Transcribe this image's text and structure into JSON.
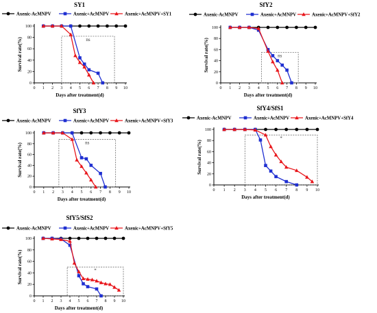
{
  "figure": {
    "legend_labels": [
      "Axenic-AcMNPV",
      "Axenic+AcMNPV",
      "Axenic+AcMNPV+SY1"
    ],
    "colors": {
      "axenic_minus": "#000000",
      "axenic_plus": "#1f2fd1",
      "axenic_plus_sfy": "#e8161b",
      "ns_box": "#555555"
    }
  },
  "chart_data": [
    {
      "type": "line",
      "title": "SY1",
      "xlabel": "Days after treatment(d)",
      "ylabel": "Survival rate(%)",
      "xlim": [
        0,
        10
      ],
      "ylim": [
        0,
        100
      ],
      "xticks": [
        0,
        1,
        2,
        3,
        4,
        5,
        6,
        7,
        8,
        9,
        10
      ],
      "yticks": [
        0,
        20,
        40,
        60,
        80,
        100
      ],
      "legend_position": "top",
      "series": [
        {
          "name": "Axenic-AcMNPV",
          "color": "#000000",
          "marker": "circle",
          "x": [
            1,
            2,
            3,
            4,
            5,
            6,
            7,
            8,
            9,
            10
          ],
          "y": [
            100,
            100,
            100,
            100,
            100,
            100,
            100,
            100,
            100,
            100
          ]
        },
        {
          "name": "Axenic+AcMNPV",
          "color": "#1f2fd1",
          "marker": "square",
          "x": [
            1,
            2,
            3,
            4,
            5,
            5.5,
            6,
            7,
            7.5
          ],
          "y": [
            100,
            100,
            100,
            100,
            44,
            33,
            23,
            17,
            0
          ]
        },
        {
          "name": "Axenic+AcMNPV+SY1",
          "color": "#e8161b",
          "marker": "triangle",
          "x": [
            1,
            2,
            3,
            4,
            4.5,
            5,
            5.5,
            6,
            6.5
          ],
          "y": [
            100,
            100,
            100,
            85,
            48,
            36,
            28,
            14,
            0
          ]
        }
      ],
      "annotation": {
        "text": "ns",
        "x_range": [
          3,
          8.8
        ],
        "y_range": [
          0,
          82
        ]
      }
    },
    {
      "type": "line",
      "title": "SfY2",
      "xlabel": "Days after treatment(d)",
      "ylabel": "Survival rate(%)",
      "xlim": [
        0,
        10
      ],
      "ylim": [
        0,
        100
      ],
      "xticks": [
        0,
        1,
        2,
        3,
        4,
        5,
        6,
        7,
        8,
        9,
        10
      ],
      "yticks": [
        0,
        20,
        40,
        60,
        80,
        100
      ],
      "legend_position": "top",
      "series": [
        {
          "name": "Axenic-AcMNPV",
          "color": "#000000",
          "marker": "circle",
          "x": [
            1,
            2,
            3,
            4,
            5,
            6,
            7,
            8,
            9,
            10
          ],
          "y": [
            100,
            100,
            100,
            100,
            100,
            100,
            100,
            100,
            100,
            100
          ]
        },
        {
          "name": "Axenic+AcMNPV",
          "color": "#1f2fd1",
          "marker": "square",
          "x": [
            1,
            2,
            3,
            4,
            5,
            5.5,
            6,
            6.5,
            7,
            7.5
          ],
          "y": [
            100,
            100,
            100,
            95,
            60,
            49,
            40,
            32,
            23,
            0
          ]
        },
        {
          "name": "Axenic+AcMNPV+SfY2",
          "color": "#e8161b",
          "marker": "triangle",
          "x": [
            1,
            2,
            3,
            4,
            5,
            5.5,
            6,
            6.5
          ],
          "y": [
            100,
            100,
            100,
            98,
            57,
            38,
            23,
            0
          ]
        }
      ],
      "annotation": {
        "text": "ns",
        "x_range": [
          4.3,
          8.2
        ],
        "y_range": [
          0,
          55
        ]
      }
    },
    {
      "type": "line",
      "title": "SfY3",
      "xlabel": "Days after treatment(d)",
      "ylabel": "Survival rate(%)",
      "xlim": [
        0,
        10
      ],
      "ylim": [
        0,
        100
      ],
      "xticks": [
        0,
        1,
        2,
        3,
        4,
        5,
        6,
        7,
        8,
        9,
        10
      ],
      "yticks": [
        0,
        20,
        40,
        60,
        80,
        100
      ],
      "legend_position": "top",
      "series": [
        {
          "name": "Axenic-AcMNPV",
          "color": "#000000",
          "marker": "circle",
          "x": [
            1,
            2,
            3,
            4,
            5,
            6,
            7,
            8,
            9,
            10
          ],
          "y": [
            100,
            100,
            100,
            100,
            100,
            100,
            100,
            100,
            100,
            100
          ]
        },
        {
          "name": "Axenic+AcMNPV",
          "color": "#1f2fd1",
          "marker": "square",
          "x": [
            1,
            2,
            3,
            4,
            5,
            5.5,
            6,
            7,
            7.5
          ],
          "y": [
            100,
            100,
            100,
            100,
            54,
            52,
            40,
            25,
            0
          ]
        },
        {
          "name": "Axenic+AcMNPV+SfY3",
          "color": "#e8161b",
          "marker": "triangle",
          "x": [
            1,
            2,
            3,
            4,
            4.5,
            5,
            5.5,
            6,
            6.5
          ],
          "y": [
            100,
            100,
            100,
            88,
            50,
            38,
            26,
            13,
            0
          ]
        }
      ],
      "annotation": {
        "text": "ns",
        "x_range": [
          2.6,
          8.6
        ],
        "y_range": [
          0,
          88
        ]
      }
    },
    {
      "type": "line",
      "title": "SfY4/SfS1",
      "xlabel": "Days after treatment(d)",
      "ylabel": "Survival rate(%)",
      "xlim": [
        0,
        10
      ],
      "ylim": [
        0,
        100
      ],
      "xticks": [
        0,
        1,
        2,
        3,
        4,
        5,
        6,
        7,
        8,
        9,
        10
      ],
      "yticks": [
        0,
        20,
        40,
        60,
        80,
        100
      ],
      "legend_position": "top",
      "series": [
        {
          "name": "Axenic-AcMNPV",
          "color": "#000000",
          "marker": "circle",
          "x": [
            1,
            2,
            3,
            4,
            5,
            6,
            7,
            8,
            9,
            10
          ],
          "y": [
            100,
            100,
            100,
            100,
            100,
            100,
            100,
            100,
            100,
            100
          ]
        },
        {
          "name": "Axenic+AcMNPV",
          "color": "#1f2fd1",
          "marker": "square",
          "x": [
            1,
            2,
            3,
            4,
            4.5,
            5,
            5.5,
            6,
            7,
            8
          ],
          "y": [
            100,
            100,
            100,
            100,
            81,
            35,
            25,
            15,
            6,
            0
          ]
        },
        {
          "name": "Axenic+AcMNPV+SfY4",
          "color": "#e8161b",
          "marker": "triangle",
          "x": [
            1,
            2,
            3,
            4,
            5,
            5.5,
            6,
            6.5,
            7,
            8,
            9,
            9.5
          ],
          "y": [
            100,
            100,
            100,
            99,
            90,
            69,
            54,
            42,
            32,
            26,
            14,
            6
          ]
        }
      ],
      "annotation": {
        "text": "*",
        "x_range": [
          3,
          10
        ],
        "y_range": [
          0,
          90
        ]
      }
    },
    {
      "type": "line",
      "title": "SfY5/SfS2",
      "xlabel": "Days after treatment(d)",
      "ylabel": "Survival rate(%)",
      "xlim": [
        0,
        10
      ],
      "ylim": [
        0,
        100
      ],
      "xticks": [
        0,
        1,
        2,
        3,
        4,
        5,
        6,
        7,
        8,
        9,
        10
      ],
      "yticks": [
        0,
        20,
        40,
        60,
        80,
        100
      ],
      "legend_position": "top",
      "series": [
        {
          "name": "Axenic-AcMNPV",
          "color": "#000000",
          "marker": "circle",
          "x": [
            1,
            2,
            3,
            4,
            5,
            6,
            7,
            8,
            9,
            10
          ],
          "y": [
            100,
            100,
            100,
            100,
            100,
            100,
            100,
            100,
            100,
            100
          ]
        },
        {
          "name": "Axenic+AcMNPV",
          "color": "#1f2fd1",
          "marker": "square",
          "x": [
            1,
            2,
            3,
            4,
            5,
            5.5,
            6,
            7,
            7.5
          ],
          "y": [
            100,
            100,
            99,
            88,
            35,
            21,
            16,
            12,
            0
          ]
        },
        {
          "name": "Axenic+AcMNPV+SfY5",
          "color": "#e8161b",
          "marker": "triangle",
          "x": [
            1,
            2,
            3,
            4,
            4.5,
            5,
            5.5,
            6,
            6.5,
            7,
            7.5,
            8,
            8.5,
            9,
            9.5
          ],
          "y": [
            100,
            99,
            98,
            95,
            57,
            42,
            30,
            29,
            28,
            26,
            23,
            21,
            20,
            15,
            10
          ]
        }
      ],
      "annotation": {
        "text": "*",
        "x_range": [
          3.7,
          10
        ],
        "y_range": [
          0,
          50
        ]
      }
    }
  ]
}
